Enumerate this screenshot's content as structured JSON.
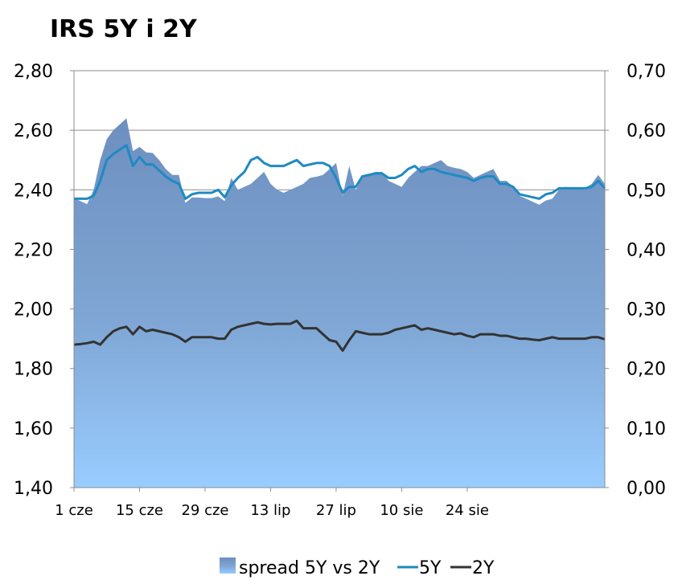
{
  "chart_data": {
    "type": "area",
    "title": "IRS 5Y i 2Y",
    "xlabel": "",
    "ylabel": "",
    "ylim": [
      1.4,
      2.8
    ],
    "ylim_right": [
      0.0,
      0.7
    ],
    "y_ticks": [
      "1,40",
      "1,60",
      "1,80",
      "2,00",
      "2,20",
      "2,40",
      "2,60",
      "2,80"
    ],
    "y_ticks_right": [
      "0,00",
      "0,10",
      "0,20",
      "0,30",
      "0,40",
      "0,50",
      "0,60",
      "0,70"
    ],
    "x_tick_labels": [
      "1 cze",
      "15 cze",
      "29 cze",
      "13 lip",
      "27 lip",
      "10 sie",
      "24 sie"
    ],
    "grid": true,
    "legend_position": "bottom",
    "series": [
      {
        "name": "spread 5Y vs 2Y",
        "axis": "right",
        "color": "#7a9cc7",
        "values": [
          0.486,
          0.481,
          0.476,
          0.5,
          0.55,
          0.585,
          0.6,
          0.61,
          0.62,
          0.565,
          0.572,
          0.563,
          0.562,
          0.55,
          0.535,
          0.525,
          0.525,
          0.478,
          0.487,
          0.487,
          0.486,
          0.486,
          0.489,
          0.481,
          0.52,
          0.5,
          0.505,
          0.51,
          0.52,
          0.53,
          0.51,
          0.5,
          0.495,
          0.5,
          0.505,
          0.51,
          0.52,
          0.522,
          0.525,
          0.535,
          0.545,
          0.49,
          0.54,
          0.5,
          0.52,
          0.525,
          0.53,
          0.53,
          0.515,
          0.51,
          0.505,
          0.52,
          0.53,
          0.54,
          0.54,
          0.545,
          0.55,
          0.54,
          0.537,
          0.535,
          0.53,
          0.52,
          0.525,
          0.53,
          0.535,
          0.515,
          0.515,
          0.505,
          0.49,
          0.485,
          0.48,
          0.475,
          0.482,
          0.485,
          0.5,
          0.505,
          0.503,
          0.503,
          0.503,
          0.51,
          0.525,
          0.51
        ]
      },
      {
        "name": "5Y",
        "axis": "left",
        "color": "#1f8ac2",
        "values": [
          2.37,
          2.37,
          2.37,
          2.38,
          2.43,
          2.5,
          2.52,
          2.535,
          2.55,
          2.48,
          2.51,
          2.485,
          2.485,
          2.465,
          2.445,
          2.43,
          2.42,
          2.37,
          2.385,
          2.39,
          2.39,
          2.39,
          2.4,
          2.375,
          2.415,
          2.44,
          2.46,
          2.5,
          2.51,
          2.49,
          2.48,
          2.48,
          2.48,
          2.49,
          2.5,
          2.48,
          2.485,
          2.49,
          2.49,
          2.48,
          2.44,
          2.39,
          2.41,
          2.41,
          2.445,
          2.45,
          2.455,
          2.455,
          2.44,
          2.44,
          2.45,
          2.47,
          2.48,
          2.46,
          2.47,
          2.47,
          2.46,
          2.455,
          2.45,
          2.445,
          2.44,
          2.43,
          2.44,
          2.445,
          2.445,
          2.42,
          2.42,
          2.41,
          2.385,
          2.38,
          2.375,
          2.37,
          2.385,
          2.39,
          2.405,
          2.405,
          2.405,
          2.405,
          2.405,
          2.41,
          2.43,
          2.405
        ]
      },
      {
        "name": "2Y",
        "axis": "left",
        "color": "#333333",
        "values": [
          1.88,
          1.882,
          1.885,
          1.89,
          1.88,
          1.905,
          1.925,
          1.935,
          1.94,
          1.915,
          1.94,
          1.925,
          1.93,
          1.925,
          1.92,
          1.915,
          1.905,
          1.89,
          1.905,
          1.905,
          1.905,
          1.905,
          1.9,
          1.9,
          1.93,
          1.94,
          1.945,
          1.95,
          1.955,
          1.95,
          1.948,
          1.95,
          1.95,
          1.95,
          1.96,
          1.935,
          1.935,
          1.935,
          1.915,
          1.895,
          1.89,
          1.86,
          1.895,
          1.925,
          1.92,
          1.915,
          1.915,
          1.915,
          1.92,
          1.93,
          1.935,
          1.94,
          1.945,
          1.93,
          1.935,
          1.93,
          1.925,
          1.92,
          1.915,
          1.918,
          1.91,
          1.905,
          1.915,
          1.915,
          1.915,
          1.91,
          1.91,
          1.905,
          1.9,
          1.9,
          1.897,
          1.895,
          1.9,
          1.905,
          1.9,
          1.9,
          1.9,
          1.9,
          1.9,
          1.905,
          1.905,
          1.898
        ]
      }
    ]
  }
}
